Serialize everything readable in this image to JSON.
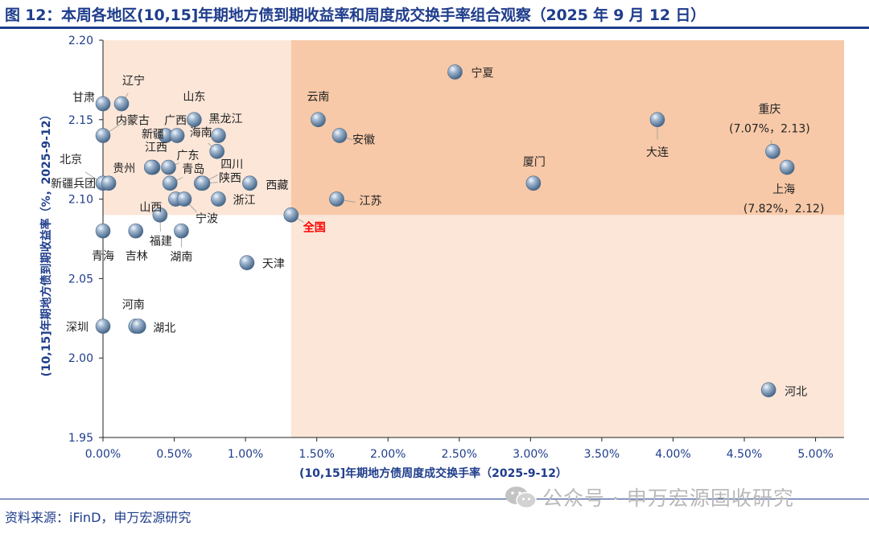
{
  "title": "图 12：本周各地区(10,15]年期地方债到期收益率和周度成交换手率组合观察（2025 年 9 月 12 日）",
  "source": "资料来源：iFinD，申万宏源研究",
  "watermark": {
    "icon": "wechat-icon",
    "text": "公众号 · 申万宏源固收研究"
  },
  "colors": {
    "title": "#1f3d8c",
    "quadrant_light": "#fbe6d8",
    "quadrant_dark": "#f7c9a8",
    "point": "#6f8fb0",
    "highlight_label": "#ff0000"
  },
  "chart_data": {
    "type": "scatter",
    "xlabel": "(10,15]年期地方债周度成交换手率（2025-9-12）",
    "ylabel": "(10,15]年期地方债到期收益率（%，2025-9-12）",
    "xlim": [
      0,
      5.2
    ],
    "ylim": [
      1.95,
      2.2
    ],
    "x_unit": "%",
    "x_ticks": [
      "0.00%",
      "0.50%",
      "1.00%",
      "1.50%",
      "2.00%",
      "2.50%",
      "3.00%",
      "3.50%",
      "4.00%",
      "4.50%",
      "5.00%"
    ],
    "y_ticks": [
      "1.95",
      "2.00",
      "2.05",
      "2.10",
      "2.15",
      "2.20"
    ],
    "reference": {
      "name": "全国",
      "x": 1.32,
      "y": 2.09
    },
    "points": [
      {
        "name": "甘肃",
        "x": 0.0,
        "y": 2.16
      },
      {
        "name": "辽宁",
        "x": 0.13,
        "y": 2.16
      },
      {
        "name": "新疆",
        "x": 0.0,
        "y": 2.14
      },
      {
        "name": "内蒙古",
        "x": 0.44,
        "y": 2.14
      },
      {
        "name": "广西",
        "x": 0.52,
        "y": 2.14
      },
      {
        "name": "山东",
        "x": 0.64,
        "y": 2.15
      },
      {
        "name": "黑龙江",
        "x": 0.81,
        "y": 2.14
      },
      {
        "name": "海南",
        "x": 0.8,
        "y": 2.13
      },
      {
        "name": "江西",
        "x": 0.35,
        "y": 2.12
      },
      {
        "name": "广东",
        "x": 0.46,
        "y": 2.12
      },
      {
        "name": "北京",
        "x": 0.0,
        "y": 2.11
      },
      {
        "name": "新疆兵团",
        "x": 0.04,
        "y": 2.11
      },
      {
        "name": "贵州",
        "x": 0.34,
        "y": 2.12
      },
      {
        "name": "青岛",
        "x": 0.47,
        "y": 2.11
      },
      {
        "name": "四川",
        "x": 0.69,
        "y": 2.11
      },
      {
        "name": "陕西",
        "x": 0.7,
        "y": 2.11
      },
      {
        "name": "山西",
        "x": 0.51,
        "y": 2.1
      },
      {
        "name": "宁波",
        "x": 0.57,
        "y": 2.1
      },
      {
        "name": "浙江",
        "x": 0.81,
        "y": 2.1
      },
      {
        "name": "西藏",
        "x": 1.03,
        "y": 2.11
      },
      {
        "name": "福建",
        "x": 0.4,
        "y": 2.09
      },
      {
        "name": "青海",
        "x": 0.0,
        "y": 2.08
      },
      {
        "name": "吉林",
        "x": 0.23,
        "y": 2.08
      },
      {
        "name": "湖南",
        "x": 0.55,
        "y": 2.08
      },
      {
        "name": "天津",
        "x": 1.01,
        "y": 2.06
      },
      {
        "name": "深圳",
        "x": 0.0,
        "y": 2.02
      },
      {
        "name": "河南",
        "x": 0.23,
        "y": 2.02
      },
      {
        "name": "湖北",
        "x": 0.25,
        "y": 2.02
      },
      {
        "name": "云南",
        "x": 1.51,
        "y": 2.15
      },
      {
        "name": "安徽",
        "x": 1.66,
        "y": 2.14
      },
      {
        "name": "江苏",
        "x": 1.64,
        "y": 2.1
      },
      {
        "name": "宁夏",
        "x": 2.47,
        "y": 2.18
      },
      {
        "name": "厦门",
        "x": 3.02,
        "y": 2.11
      },
      {
        "name": "大连",
        "x": 3.89,
        "y": 2.15
      },
      {
        "name": "重庆",
        "x": 4.7,
        "y": 2.13
      },
      {
        "name": "上海",
        "x": 4.8,
        "y": 2.12
      },
      {
        "name": "河北",
        "x": 4.67,
        "y": 1.98
      }
    ],
    "annotations": [
      {
        "target": "重庆",
        "text": "(7.07%，2.13)"
      },
      {
        "target": "上海",
        "text": "(7.82%，2.12)"
      }
    ]
  }
}
